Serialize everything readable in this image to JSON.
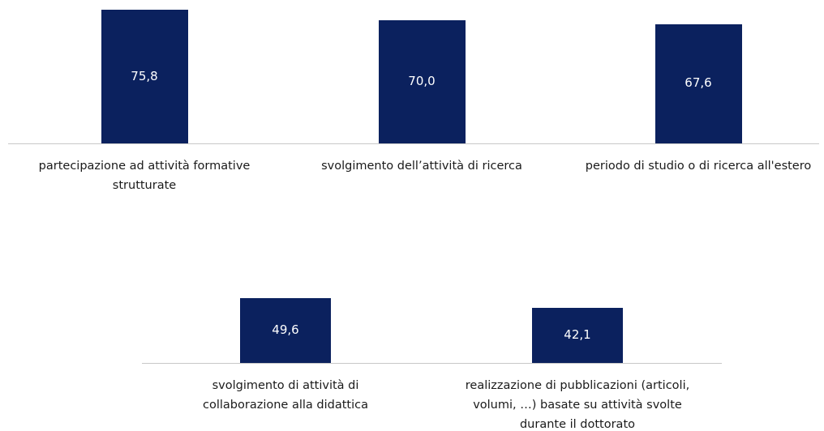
{
  "chart_data": [
    {
      "type": "bar",
      "color": "#0b215e",
      "categories": [
        "partecipazione ad attività formative strutturate",
        "svolgimento dell’attività di ricerca",
        "periodo di studio o di ricerca all'estero"
      ],
      "values": [
        75.8,
        70.0,
        67.6
      ],
      "value_labels": [
        "75,8",
        "70,0",
        "67,6"
      ]
    },
    {
      "type": "bar",
      "color": "#0b215e",
      "categories": [
        "svolgimento di attività di collaborazione alla didattica",
        "realizzazione di pubblicazioni (articoli, volumi, …) basate su attività svolte durante il dottorato"
      ],
      "values": [
        49.6,
        42.1
      ],
      "value_labels": [
        "49,6",
        "42,1"
      ]
    }
  ]
}
